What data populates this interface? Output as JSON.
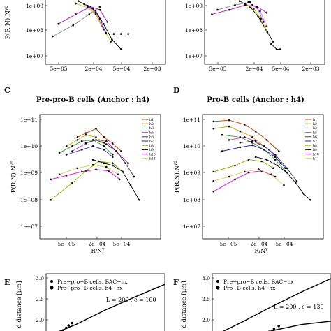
{
  "charts": [
    {
      "id": "A",
      "letter": "",
      "title": "",
      "ylabel": "P(R,N).N",
      "ylabel_sup": "vd",
      "xlabel": "",
      "yticks": [
        {
          "label": "1e+09",
          "exp": 9
        },
        {
          "label": "1e+08",
          "exp": 8
        },
        {
          "label": "1e+07",
          "exp": 7
        }
      ],
      "xticks": [
        "5e−05",
        "2e−04",
        "5e−04",
        "2e−03"
      ],
      "legend": []
    },
    {
      "id": "B",
      "letter": "",
      "title": "",
      "ylabel": "",
      "ylabel_sup": "",
      "xlabel": "",
      "yticks": [
        {
          "label": "1e+09",
          "exp": 9
        },
        {
          "label": "1e+08",
          "exp": 8
        },
        {
          "label": "1e+07",
          "exp": 7
        }
      ],
      "xticks": [
        "5e−05",
        "2e−04",
        "5e−04",
        "2e−03"
      ],
      "legend": []
    },
    {
      "id": "C",
      "letter": "C",
      "title": "Pre-pro-B cells (Anchor : h4)",
      "ylabel": "P(R,N).N",
      "ylabel_sup": "vd",
      "xlabel": "R/N",
      "xlabel_sup": "v",
      "yticks": [
        {
          "label": "1e+11",
          "exp": 11
        },
        {
          "label": "1e+10",
          "exp": 10
        },
        {
          "label": "1e+09",
          "exp": 9
        },
        {
          "label": "1e+08",
          "exp": 8
        },
        {
          "label": "1e+07",
          "exp": 7
        }
      ],
      "xticks": [
        "5e−05",
        "2e−04",
        "5e−04"
      ],
      "legend": [
        "h1",
        "h2",
        "h3",
        "h5",
        "h6",
        "h7",
        "h8",
        "h9",
        "h10",
        "h11"
      ]
    },
    {
      "id": "D",
      "letter": "D",
      "title": "Pro-B cells (Anchor : h4)",
      "ylabel": "P(R,N).N",
      "ylabel_sup": "vd",
      "xlabel": "R/N",
      "xlabel_sup": "v",
      "yticks": [
        {
          "label": "1e+11",
          "exp": 11
        },
        {
          "label": "1e+10",
          "exp": 10
        },
        {
          "label": "1e+09",
          "exp": 9
        },
        {
          "label": "1e+08",
          "exp": 8
        },
        {
          "label": "1e+07",
          "exp": 7
        }
      ],
      "xticks": [
        "5e−05",
        "2e−04",
        "5e−04"
      ],
      "legend": [
        "h1",
        "h2",
        "h3",
        "h5",
        "h6",
        "h7",
        "h8",
        "h9",
        "h10",
        "h11"
      ]
    },
    {
      "id": "E",
      "letter": "E",
      "title": "",
      "ylabel": "d distance [μm]",
      "yticks": [
        "3.0",
        "2.5",
        "2.0"
      ],
      "legend": [
        "Pre−pro−B cells, BAC−hx",
        "Pre−pro−B cells, h4−hx"
      ],
      "annotation": "L = 200 , c = 100"
    },
    {
      "id": "F",
      "letter": "F",
      "title": "",
      "ylabel": "d distance [μm]",
      "yticks": [
        "3.0",
        "2.5",
        "2.0"
      ],
      "legend": [
        "Pre−pro−B cells, BAC−hx",
        "Pro−B cells, h4−hx"
      ],
      "annotation": "L = 200 , c = 130"
    }
  ],
  "chart_data": [
    {
      "panel": "A",
      "type": "line",
      "yscale": "log",
      "xscale": "log",
      "xlim": [
        3e-05,
        0.0035
      ],
      "ylim_exp": [
        6.8,
        9.4
      ],
      "series": [
        {
          "color": "#000000",
          "x": [
            0.00011,
            0.00016,
            0.00022,
            0.0003,
            0.00042,
            0.0006
          ],
          "y": [
            2000000000.0,
            1300000000.0,
            800000000.0,
            250000000.0,
            60000000.0,
            25000000.0
          ]
        },
        {
          "color": "#c000c0",
          "x": [
            5e-05,
            0.0001,
            0.00018,
            0.00026,
            0.00035
          ],
          "y": [
            250000000.0,
            600000000.0,
            1200000000.0,
            900000000.0,
            300000000.0
          ]
        },
        {
          "color": "#888888",
          "x": [
            4e-05,
            9e-05,
            0.00017,
            0.00026
          ],
          "y": [
            80000000.0,
            220000000.0,
            600000000.0,
            1200000000.0
          ]
        },
        {
          "color": "#c8c800",
          "x": [
            0.0001,
            0.00016,
            0.00022,
            0.00028,
            0.0004
          ],
          "y": [
            1600000000.0,
            1100000000.0,
            600000000.0,
            200000000.0,
            50000000.0
          ]
        },
        {
          "color": "#4040ff",
          "x": [
            0.00014,
            0.0002,
            0.00026,
            0.00033
          ],
          "y": [
            1500000000.0,
            1000000000.0,
            400000000.0,
            110000000.0
          ]
        },
        {
          "color": "#ff6060",
          "x": [
            0.00016,
            0.00022,
            0.0003
          ],
          "y": [
            1200000000.0,
            700000000.0,
            150000000.0
          ]
        },
        {
          "color": "#000000",
          "x": [
            0.00045,
            0.0006,
            0.0008
          ],
          "y": [
            100000000.0,
            100000000.0,
            100000000.0
          ]
        }
      ]
    },
    {
      "panel": "B",
      "type": "line",
      "yscale": "log",
      "xscale": "log",
      "xlim": [
        3e-05,
        0.0035
      ],
      "ylim_exp": [
        6.8,
        9.4
      ],
      "series": [
        {
          "color": "#000000",
          "x": [
            0.00012,
            0.00018,
            0.00025,
            0.00034,
            0.00045
          ],
          "y": [
            2000000000.0,
            1200000000.0,
            500000000.0,
            150000000.0,
            50000000.0
          ]
        },
        {
          "color": "#c000c0",
          "x": [
            4e-05,
            8e-05,
            0.00015,
            0.00024,
            0.00035
          ],
          "y": [
            600000000.0,
            900000000.0,
            1400000000.0,
            1200000000.0,
            700000000.0
          ]
        },
        {
          "color": "#888888",
          "x": [
            5e-05,
            0.0001,
            0.00018
          ],
          "y": [
            900000000.0,
            1400000000.0,
            1800000000.0
          ]
        },
        {
          "color": "#c8c800",
          "x": [
            0.00015,
            0.00021,
            0.00028,
            0.00036
          ],
          "y": [
            1600000000.0,
            1000000000.0,
            400000000.0,
            120000000.0
          ]
        },
        {
          "color": "#8080ff",
          "x": [
            0.00017,
            0.00024,
            0.00031
          ],
          "y": [
            1800000000.0,
            1100000000.0,
            300000000.0
          ]
        },
        {
          "color": "#ff60ff",
          "x": [
            0.0002,
            0.00027,
            0.00035
          ],
          "y": [
            1400000000.0,
            800000000.0,
            200000000.0
          ]
        },
        {
          "color": "#000000",
          "x": [
            0.00042,
            0.00052,
            0.0006
          ],
          "y": [
            40000000.0,
            25000000.0,
            25000000.0
          ]
        }
      ]
    },
    {
      "panel": "C",
      "type": "line",
      "yscale": "log",
      "xscale": "log",
      "xlim": [
        3e-05,
        0.0007
      ],
      "ylim_exp": [
        6.8,
        11.2
      ],
      "series": [
        {
          "name": "h1",
          "color": "#c04000",
          "x": [
            8e-05,
            0.0001,
            0.00013,
            0.00016,
            0.0002,
            0.00025
          ],
          "y": [
            25000000000.0,
            35000000000.0,
            50000000000.0,
            25000000000.0,
            15000000000.0,
            8000000000.0
          ]
        },
        {
          "name": "h2",
          "color": "#d0a000",
          "x": [
            6e-05,
            8e-05,
            0.0001,
            0.00013,
            0.00016
          ],
          "y": [
            12000000000.0,
            20000000000.0,
            30000000000.0,
            25000000000.0,
            16000000000.0
          ]
        },
        {
          "name": "h3",
          "color": "#40a040",
          "x": [
            5e-05,
            7e-05,
            9e-05,
            0.00012,
            0.00016,
            0.0002
          ],
          "y": [
            7000000000.0,
            12000000000.0,
            18000000000.0,
            20000000000.0,
            12000000000.0,
            6000000000.0
          ]
        },
        {
          "name": "h5",
          "color": "#c040c0",
          "x": [
            7e-05,
            0.0001,
            0.00013,
            0.00017,
            0.00022,
            0.0003
          ],
          "y": [
            8000000000.0,
            15000000000.0,
            20000000000.0,
            18000000000.0,
            8000000000.0,
            3000000000.0
          ]
        },
        {
          "name": "h6",
          "color": "#404040",
          "x": [
            0.0001,
            0.00013,
            0.00017,
            0.00022,
            0.00028,
            0.00035
          ],
          "y": [
            16000000000.0,
            20000000000.0,
            14000000000.0,
            8000000000.0,
            3000000000.0,
            1000000000.0
          ]
        },
        {
          "name": "h7",
          "color": "#2020c0",
          "x": [
            6e-05,
            9e-05,
            0.00012,
            0.00016,
            0.0002
          ],
          "y": [
            6000000000.0,
            9000000000.0,
            12000000000.0,
            9000000000.0,
            5000000000.0
          ]
        },
        {
          "name": "h8",
          "color": "#90b000",
          "x": [
            4e-05,
            7e-05,
            0.0001,
            0.00014,
            0.0002,
            0.00026
          ],
          "y": [
            150000000.0,
            600000000.0,
            1600000000.0,
            3500000000.0,
            3000000000.0,
            1500000000.0
          ]
        },
        {
          "name": "h9",
          "color": "#000000",
          "x": [
            0.00012,
            0.00016,
            0.0002,
            0.00026,
            0.00032,
            0.0004
          ],
          "y": [
            4000000000.0,
            3000000000.0,
            2500000000.0,
            1500000000.0,
            500000000.0,
            150000000.0
          ]
        },
        {
          "name": "h10",
          "color": "#e000e0",
          "x": [
            4e-05,
            6e-05,
            9e-05,
            0.00013,
            0.00018,
            0.00024
          ],
          "y": [
            800000000.0,
            1100000000.0,
            1500000000.0,
            1800000000.0,
            1600000000.0,
            800000000.0
          ]
        },
        {
          "name": "h11",
          "color": "#d0d060",
          "x": [
            5e-05,
            8e-05,
            0.00012,
            0.00017,
            0.00023
          ],
          "y": [
            1200000000.0,
            2000000000.0,
            2600000000.0,
            2200000000.0,
            1200000000.0
          ]
        }
      ]
    },
    {
      "panel": "D",
      "type": "line",
      "yscale": "log",
      "xscale": "log",
      "xlim": [
        3e-05,
        0.0007
      ],
      "ylim_exp": [
        6.8,
        11.2
      ],
      "series": [
        {
          "name": "h1",
          "color": "#c04000",
          "x": [
            4e-05,
            6e-05,
            9e-05,
            0.00012,
            0.00016,
            0.00022
          ],
          "y": [
            90000000000.0,
            100000000000.0,
            70000000000.0,
            40000000000.0,
            20000000000.0,
            8000000000.0
          ]
        },
        {
          "name": "h2",
          "color": "#d0a000",
          "x": [
            4e-05,
            6e-05,
            8e-05,
            0.00011,
            0.00015
          ],
          "y": [
            50000000000.0,
            60000000000.0,
            40000000000.0,
            25000000000.0,
            12000000000.0
          ]
        },
        {
          "name": "h3",
          "color": "#40a040",
          "x": [
            5e-05,
            8e-05,
            0.00011,
            0.00015,
            0.0002,
            0.00026
          ],
          "y": [
            30000000000.0,
            25000000000.0,
            16000000000.0,
            9000000000.0,
            4000000000.0,
            1600000000.0
          ]
        },
        {
          "name": "h5",
          "color": "#c040c0",
          "x": [
            6e-05,
            9e-05,
            0.00012,
            0.00017,
            0.00023
          ],
          "y": [
            20000000000.0,
            25000000000.0,
            18000000000.0,
            9000000000.0,
            3000000000.0
          ]
        },
        {
          "name": "h6",
          "color": "#404040",
          "x": [
            8e-05,
            0.00011,
            0.00015,
            0.0002,
            0.00027,
            0.00035
          ],
          "y": [
            16000000000.0,
            18000000000.0,
            12000000000.0,
            6000000000.0,
            2000000000.0,
            700000000.0
          ]
        },
        {
          "name": "h7",
          "color": "#2020c0",
          "x": [
            5e-05,
            8e-05,
            0.00011,
            0.00015,
            0.0002,
            0.00026
          ],
          "y": [
            8000000000.0,
            11000000000.0,
            13000000000.0,
            9000000000.0,
            5000000000.0,
            2000000000.0
          ]
        },
        {
          "name": "h8",
          "color": "#90b000",
          "x": [
            4e-05,
            7e-05,
            0.0001,
            0.00014,
            0.00019
          ],
          "y": [
            1500000000.0,
            2500000000.0,
            4000000000.0,
            3500000000.0,
            2000000000.0
          ]
        },
        {
          "name": "h9",
          "color": "#000000",
          "x": [
            0.00012,
            0.00016,
            0.00021,
            0.00027,
            0.00034,
            0.00042,
            0.0005
          ],
          "y": [
            5000000000.0,
            4000000000.0,
            2500000000.0,
            1400000000.0,
            600000000.0,
            250000000.0,
            150000000.0
          ]
        },
        {
          "name": "h10",
          "color": "#e000e0",
          "x": [
            4e-05,
            7e-05,
            0.0001,
            0.00014,
            0.0002
          ],
          "y": [
            300000000.0,
            800000000.0,
            1400000000.0,
            1600000000.0,
            1000000000.0
          ]
        },
        {
          "name": "h11",
          "color": "#d0d060",
          "x": [
            4e-05,
            6e-05,
            9e-05,
            0.00013,
            0.00018,
            0.00025
          ],
          "y": [
            700000000.0,
            1000000000.0,
            1500000000.0,
            1800000000.0,
            1200000000.0,
            500000000.0
          ]
        }
      ]
    },
    {
      "panel": "E",
      "type": "scatter",
      "ylim": [
        1.8,
        3.1
      ],
      "curve": {
        "x": [
          0.0,
          0.25,
          0.5,
          0.75,
          1.0
        ],
        "y": [
          1.8,
          2.05,
          2.35,
          2.62,
          2.88
        ]
      },
      "points": {
        "x": [
          0.12,
          0.14,
          0.17,
          0.19,
          0.22
        ],
        "y": [
          1.86,
          1.92,
          1.98,
          2.03,
          2.08
        ]
      }
    },
    {
      "panel": "F",
      "type": "scatter",
      "ylim": [
        1.8,
        3.1
      ],
      "curve": {
        "x": [
          0.0,
          0.25,
          0.5,
          0.75,
          1.0
        ],
        "y": [
          1.8,
          2.1,
          2.42,
          2.72,
          3.0
        ]
      },
      "curve2": {
        "x": [
          0.3,
          0.5,
          0.75,
          1.0
        ],
        "y": [
          1.8,
          1.92,
          2.05,
          2.12
        ]
      },
      "points": {
        "x": [
          0.45,
          0.48,
          0.52,
          0.56
        ],
        "y": [
          1.84,
          1.9,
          1.96,
          2.02
        ]
      }
    }
  ]
}
